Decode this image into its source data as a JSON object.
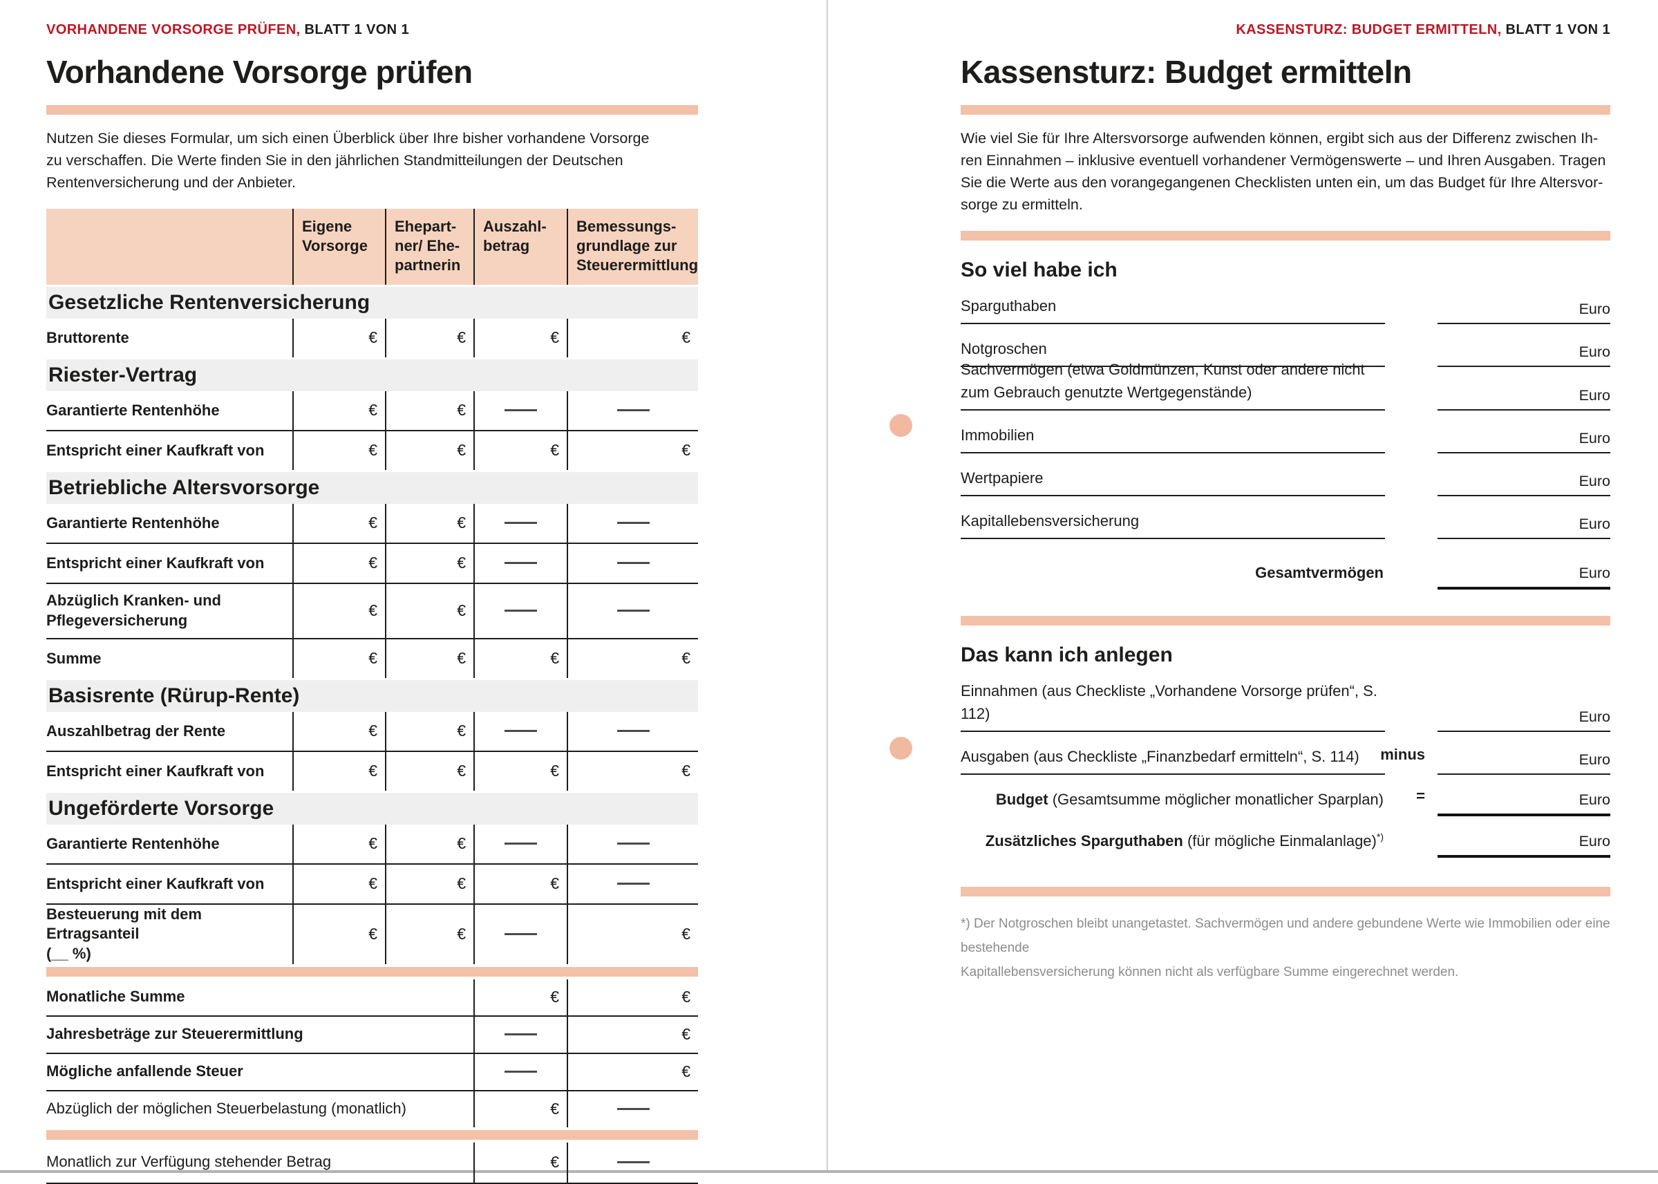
{
  "accent_color": "#f2c1a7",
  "red_color": "#bf1522",
  "left_page": {
    "kicker_highlight": "VORHANDENE VORSORGE PRÜFEN,",
    "kicker_rest": " BLATT 1 VON 1",
    "title": "Vorhandene Vorsorge prüfen",
    "intro": "Nutzen Sie dieses Formular, um sich einen Überblick über Ihre bisher vorhandene Vorsorge\nzu verschaffen. Die Werte finden Sie in den jährlichen Standmitteilungen der Deutschen\nRentenversicherung und der Anbieter.",
    "table": {
      "columns": [
        "",
        "Eigene\nVorsorge",
        "Ehepart-\nner/ Ehe-\npartnerin",
        "Auszahl-\nbetrag",
        "Bemessungs-\ngrundlage zur\nSteuerermittlung"
      ],
      "sections": [
        {
          "heading": "Gesetzliche Rentenversicherung",
          "rows": [
            {
              "label": "Bruttorente",
              "cells": [
                "€",
                "€",
                "€",
                "€"
              ]
            }
          ]
        },
        {
          "heading": "Riester-Vertrag",
          "rows": [
            {
              "label": "Garantierte Rentenhöhe",
              "cells": [
                "€",
                "€",
                "—",
                "—"
              ]
            },
            {
              "label": "Entspricht einer Kaufkraft von",
              "cells": [
                "€",
                "€",
                "€",
                "€"
              ]
            }
          ]
        },
        {
          "heading": "Betriebliche Altersvorsorge",
          "rows": [
            {
              "label": "Garantierte Rentenhöhe",
              "cells": [
                "€",
                "€",
                "—",
                "—"
              ]
            },
            {
              "label": "Entspricht einer Kaufkraft von",
              "cells": [
                "€",
                "€",
                "—",
                "—"
              ]
            },
            {
              "label": "Abzüglich Kranken- und\nPflegeversicherung",
              "cells": [
                "€",
                "€",
                "—",
                "—"
              ],
              "tall": true
            },
            {
              "label": "Summe",
              "cells": [
                "€",
                "€",
                "€",
                "€"
              ]
            }
          ]
        },
        {
          "heading": "Basisrente (Rürup-Rente)",
          "rows": [
            {
              "label": "Auszahlbetrag der Rente",
              "cells": [
                "€",
                "€",
                "—",
                "—"
              ]
            },
            {
              "label": "Entspricht einer Kaufkraft von",
              "cells": [
                "€",
                "€",
                "€",
                "€"
              ]
            }
          ]
        },
        {
          "heading": "Ungeförderte Vorsorge",
          "rows": [
            {
              "label": "Garantierte Rentenhöhe",
              "cells": [
                "€",
                "€",
                "—",
                "—"
              ]
            },
            {
              "label": "Entspricht einer Kaufkraft von",
              "cells": [
                "€",
                "€",
                "€",
                "—"
              ]
            },
            {
              "label": "Besteuerung mit dem Ertragsanteil\n(__ %)",
              "cells": [
                "€",
                "€",
                "—",
                "€"
              ],
              "tall": true
            }
          ]
        }
      ],
      "summary_rows": [
        {
          "label": "Monatliche Summe",
          "bold": true,
          "cells": [
            "€",
            "€"
          ]
        },
        {
          "label": "Jahresbeträge zur Steuerermittlung",
          "bold": true,
          "cells": [
            "—",
            "€"
          ]
        },
        {
          "label": "Mögliche anfallende Steuer",
          "bold": true,
          "cells": [
            "—",
            "€"
          ]
        },
        {
          "label": "Abzüglich der möglichen Steuerbelastung (monatlich)",
          "bold": false,
          "cells": [
            "€",
            "—"
          ]
        }
      ],
      "final_row": {
        "label": "Monatlich zur Verfügung stehender Betrag",
        "bold": false,
        "cells": [
          "€",
          "—"
        ]
      }
    }
  },
  "right_page": {
    "kicker_highlight": "KASSENSTURZ: BUDGET ERMITTELN,",
    "kicker_rest": " BLATT 1 VON 1",
    "title": "Kassensturz: Budget ermitteln",
    "intro": "Wie viel Sie für Ihre Altersvorsorge aufwenden können, ergibt sich aus der Differenz zwischen Ih-\nren Einnahmen – inklusive eventuell vorhandener Vermögenswerte – und Ihren Ausgaben. Tragen\nSie die Werte aus den vorangegangenen Checklisten unten ein, um das Budget für Ihre Altersvor-\nsorge zu ermitteln.",
    "currency_label": "Euro",
    "section_assets": {
      "heading": "So viel habe ich",
      "fields": [
        {
          "label": "Sparguthaben"
        },
        {
          "label": "Notgroschen"
        },
        {
          "label": "Sachvermögen (etwa Goldmünzen, Kunst oder andere nicht\nzum Gebrauch genutzte Wertgegenstände)",
          "two_line": true
        },
        {
          "label": "Immobilien"
        },
        {
          "label": "Wertpapiere"
        },
        {
          "label": "Kapitallebensversicherung"
        }
      ],
      "total": {
        "label_bold": "Gesamtvermögen",
        "label_rest": "",
        "thick": true,
        "right_align": true,
        "gap_lg": true
      }
    },
    "section_invest": {
      "heading": "Das kann ich anlegen",
      "fields": [
        {
          "label": "Einnahmen (aus Checkliste „Vorhandene Vorsorge prüfen“, S. 112)"
        },
        {
          "label": "Ausgaben (aus Checkliste „Finanzbedarf ermitteln“, S. 114)",
          "operator": "minus"
        },
        {
          "label_bold": "Budget",
          "label_rest": " (Gesamtsumme möglicher monatlicher Sparplan)",
          "operator": "=",
          "thick": true,
          "right_align": true
        },
        {
          "label_bold": "Zusätzliches Sparguthaben",
          "label_rest": " (für mögliche Einmalanlage)",
          "sup": "*)",
          "thick": true,
          "right_align": true
        }
      ]
    },
    "footnote": "*) Der Notgroschen bleibt unangetastet. Sachvermögen und andere gebundene Werte wie Immobilien oder eine bestehende\nKapitallebensversicherung können nicht als verfügbare Summe eingerechnet werden."
  }
}
